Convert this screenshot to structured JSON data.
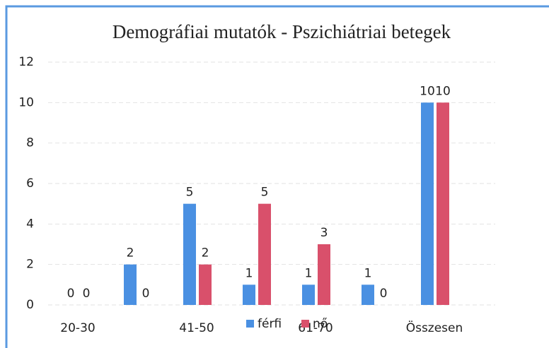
{
  "chart_data": {
    "type": "bar",
    "title": "Demográfiai mutatók - Pszichiátriai betegek",
    "categories": [
      "20-30",
      null,
      "41-50",
      null,
      "61-70",
      null,
      "Összesen"
    ],
    "series": [
      {
        "name": "férfi",
        "color": "#4a90e2",
        "values": [
          0,
          2,
          5,
          1,
          1,
          1,
          10
        ]
      },
      {
        "name": "nő",
        "color": "#d9506b",
        "values": [
          0,
          0,
          2,
          5,
          3,
          0,
          10
        ]
      }
    ],
    "ylim": [
      0,
      12
    ],
    "yticks": [
      0,
      2,
      4,
      6,
      8,
      10,
      12
    ],
    "grid": true,
    "legend": "bottom"
  }
}
